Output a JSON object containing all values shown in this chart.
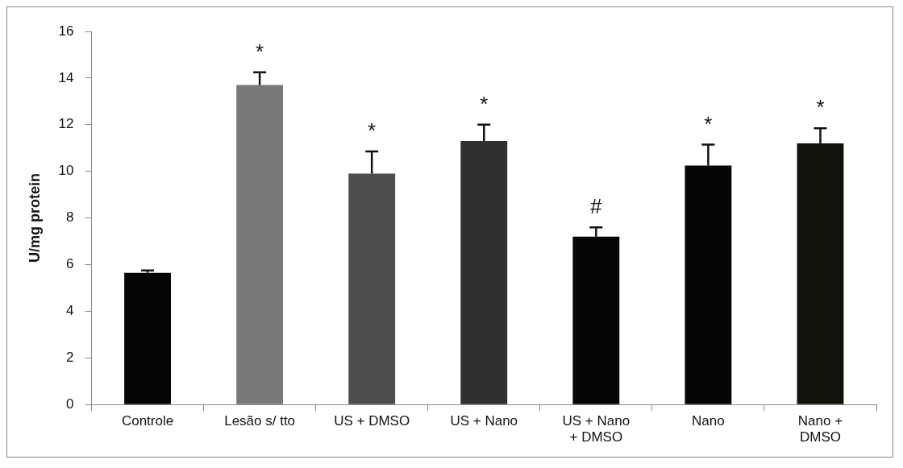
{
  "chart_data": {
    "type": "bar",
    "ylabel": "U/mg protein",
    "categories": [
      "Controle",
      "Lesão s/ tto",
      "US + DMSO",
      "US + Nano",
      "US + Nano + DMSO",
      "Nano",
      "Nano + DMSO"
    ],
    "values": [
      5.65,
      13.7,
      9.9,
      11.3,
      7.2,
      10.25,
      11.2
    ],
    "colors": [
      "#050505",
      "#787878",
      "#4d4d4d",
      "#303030",
      "#050505",
      "#050505",
      "#12110a"
    ],
    "errors": [
      0.1,
      0.55,
      0.95,
      0.7,
      0.4,
      0.9,
      0.65
    ],
    "ylim": [
      0,
      16
    ],
    "yticks": [
      0,
      2,
      4,
      6,
      8,
      10,
      12,
      14,
      16
    ],
    "grid": false,
    "legend": false,
    "annotations": [
      {
        "text": "*",
        "x": "Lesão s/ tto",
        "y": 14.25
      },
      {
        "text": "*",
        "x": "US + DMSO",
        "y": 10.85
      },
      {
        "text": "*",
        "x": "US + Nano",
        "y": 12.0
      },
      {
        "text": "#",
        "x": "US + Nano + DMSO",
        "y": 7.6
      },
      {
        "text": "*",
        "x": "Nano",
        "y": 11.15
      },
      {
        "text": "*",
        "x": "Nano + DMSO",
        "y": 11.85
      }
    ]
  }
}
